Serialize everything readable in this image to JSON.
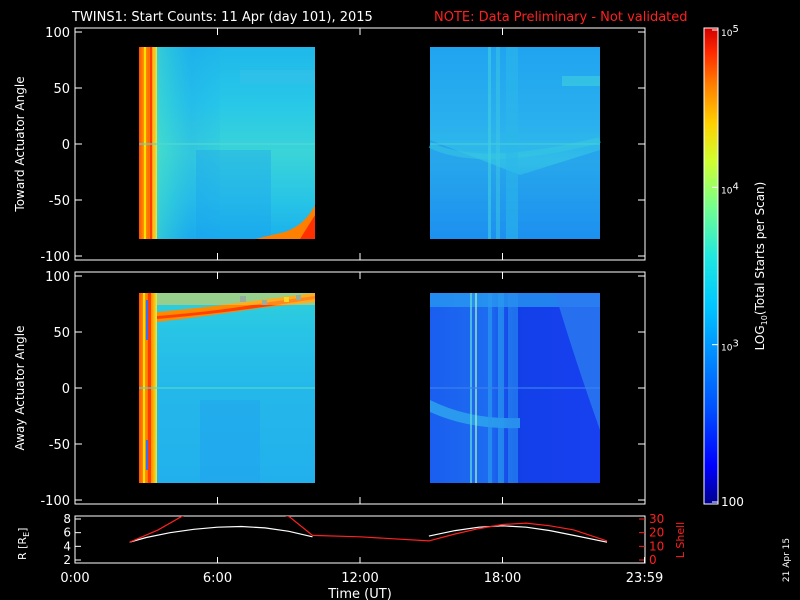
{
  "title": "TWINS1: Start Counts: 11 Apr (day 101), 2015",
  "note": "NOTE: Data Preliminary - Not validated",
  "side_date": "21 Apr 15",
  "colorbar": {
    "label": "LOG10(Total Starts per Scan)",
    "label_main": "LOG",
    "label_sub": "10",
    "label_rest": "(Total Starts per Scan)",
    "tick_labels": [
      {
        "base": "10",
        "exp": "5",
        "value": 100000
      },
      {
        "base": "10",
        "exp": "4",
        "value": 10000
      },
      {
        "base": "10",
        "exp": "3",
        "value": 1000
      },
      {
        "base": "100",
        "exp": "",
        "value": 100
      }
    ],
    "range": [
      100,
      100000
    ],
    "scale": "log",
    "colormap": [
      "#000080",
      "#0000ff",
      "#0066ff",
      "#00ccff",
      "#33ffcc",
      "#99ff66",
      "#ffff00",
      "#ff9900",
      "#ff3300",
      "#cc0000"
    ]
  },
  "chart_data": [
    {
      "type": "heatmap",
      "ylabel": "Toward Actuator Angle",
      "ylim": [
        -100,
        100
      ],
      "yticks": [
        "100",
        "50",
        "0",
        "-50",
        "-100"
      ],
      "ytick_values": [
        100,
        50,
        0,
        -50,
        -100
      ],
      "xlim": [
        0,
        24
      ],
      "data_blocks": [
        {
          "x_start": 2.3,
          "x_end": 10.0,
          "y_start": -90,
          "y_end": 90,
          "dominant_color": "#22c4e8",
          "edge_color": "#ff7a00"
        },
        {
          "x_start": 14.9,
          "x_end": 22.4,
          "y_start": -90,
          "y_end": 90,
          "dominant_color": "#1f9ef0",
          "edge_color": "#1f9ef0"
        }
      ]
    },
    {
      "type": "heatmap",
      "ylabel": "Away Actuator Angle",
      "ylim": [
        -100,
        100
      ],
      "yticks": [
        "100",
        "50",
        "0",
        "-50",
        "-100"
      ],
      "ytick_values": [
        100,
        50,
        0,
        -50,
        -100
      ],
      "xlim": [
        0,
        24
      ],
      "data_blocks": [
        {
          "x_start": 2.3,
          "x_end": 10.0,
          "y_start": -90,
          "y_end": 90,
          "dominant_color": "#22bce8",
          "edge_color": "#ff6a00"
        },
        {
          "x_start": 14.9,
          "x_end": 22.4,
          "y_start": -90,
          "y_end": 90,
          "dominant_color": "#1a55e8",
          "edge_color": "#1a55e8"
        }
      ]
    },
    {
      "type": "line",
      "ylabel": "R [RE]",
      "ylabel_main": "R [R",
      "ylabel_sub": "E",
      "ylabel_end": "]",
      "ylim": [
        2,
        8
      ],
      "yticks": [
        "8",
        "6",
        "4",
        "2"
      ],
      "ytick_values": [
        8,
        6,
        4,
        2
      ],
      "y2label": "L Shell",
      "y2lim": [
        0,
        30
      ],
      "y2ticks": [
        "30",
        "20",
        "10",
        "0"
      ],
      "y2tick_values": [
        30,
        20,
        10,
        0
      ],
      "xlabel": "Time (UT)",
      "xlim": [
        0,
        24
      ],
      "xticks": [
        "0:00",
        "6:00",
        "12:00",
        "18:00",
        "23:59"
      ],
      "xtick_values": [
        0,
        6,
        12,
        18,
        23.98
      ],
      "series": [
        {
          "axis": "left",
          "color": "#ffffff",
          "x": [
            2.3,
            3,
            4,
            5,
            6,
            7,
            8,
            9,
            10,
            14.9,
            16,
            17,
            18,
            19,
            20,
            21,
            22.4
          ],
          "y": [
            4.6,
            5.3,
            6.0,
            6.5,
            6.8,
            6.9,
            6.7,
            6.2,
            5.4,
            5.5,
            6.3,
            6.8,
            7.0,
            6.8,
            6.3,
            5.6,
            4.6
          ]
        },
        {
          "axis": "right",
          "color": "#ff2020",
          "x": [
            2.3,
            3.5,
            4.5,
            5,
            8,
            9,
            10,
            12,
            14.9,
            16,
            17,
            18,
            19,
            20,
            21,
            22.4
          ],
          "y": [
            13,
            22,
            32,
            36,
            36,
            32,
            18,
            17,
            14,
            19,
            23,
            26,
            27,
            25,
            22,
            14
          ]
        }
      ]
    }
  ]
}
